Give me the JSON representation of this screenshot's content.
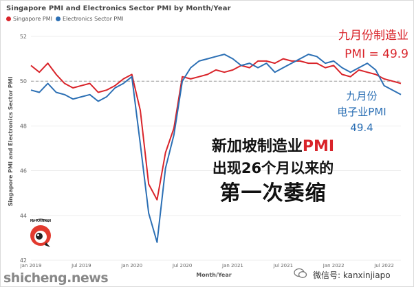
{
  "title": "Singapore PMI and Electronics Sector PMI by Month/Year",
  "legend": [
    {
      "name": "Singapore PMI",
      "color": "#d9242a"
    },
    {
      "name": "Electronics Sector PMI",
      "color": "#2b6fb4"
    }
  ],
  "annotations": {
    "singapore_line1": "九月份制造业",
    "singapore_line2": "PMI = 49.9",
    "electronics_line1": "九月份",
    "electronics_line2": "电子业PMI",
    "electronics_line3": "49.4"
  },
  "headline": {
    "line1_prefix": "新加坡制造业",
    "line1_highlight": "PMI",
    "line2": "出现26个月以来的",
    "line3": "第一次萎缩"
  },
  "badge_text": "MI KANKIN",
  "watermark_left": "shicheng.news",
  "watermark_right": "微信号: kanxinjiapo",
  "colors": {
    "singapore": "#d9242a",
    "electronics": "#2b6fb4",
    "reference": "#999999",
    "grid": "#e6e6e6"
  },
  "chart_data": {
    "type": "line",
    "title": "Singapore PMI and Electronics Sector PMI by Month/Year",
    "xlabel": "Month/Year",
    "ylabel": "Singapore PMI and Electronics Sector PMI",
    "ylim": [
      42,
      52
    ],
    "yticks": [
      42,
      44,
      46,
      48,
      50,
      52
    ],
    "x": [
      "Jan 2019",
      "Feb 2019",
      "Mar 2019",
      "Apr 2019",
      "May 2019",
      "Jun 2019",
      "Jul 2019",
      "Aug 2019",
      "Sep 2019",
      "Oct 2019",
      "Nov 2019",
      "Dec 2019",
      "Jan 2020",
      "Feb 2020",
      "Mar 2020",
      "Apr 2020",
      "May 2020",
      "Jun 2020",
      "Jul 2020",
      "Aug 2020",
      "Sep 2020",
      "Oct 2020",
      "Nov 2020",
      "Dec 2020",
      "Jan 2021",
      "Feb 2021",
      "Mar 2021",
      "Apr 2021",
      "May 2021",
      "Jun 2021",
      "Jul 2021",
      "Aug 2021",
      "Sep 2021",
      "Oct 2021",
      "Nov 2021",
      "Dec 2021",
      "Jan 2022",
      "Feb 2022",
      "Mar 2022",
      "Apr 2022",
      "May 2022",
      "Jun 2022",
      "Jul 2022",
      "Aug 2022",
      "Sep 2022"
    ],
    "xtick_labels": [
      {
        "index": 0,
        "label": "Jan 2019"
      },
      {
        "index": 6,
        "label": "Jul 2019"
      },
      {
        "index": 12,
        "label": "Jan 2020"
      },
      {
        "index": 18,
        "label": "Jul 2020"
      },
      {
        "index": 24,
        "label": "Jan 2021"
      },
      {
        "index": 30,
        "label": "Jul 2021"
      },
      {
        "index": 36,
        "label": "Jan 2022"
      },
      {
        "index": 42,
        "label": "Jul 2022"
      }
    ],
    "reference_line": 50,
    "series": [
      {
        "name": "Singapore PMI",
        "color": "#d9242a",
        "values": [
          50.7,
          50.4,
          50.8,
          50.3,
          49.9,
          49.7,
          49.8,
          49.9,
          49.5,
          49.6,
          49.8,
          50.1,
          50.3,
          48.7,
          45.4,
          44.7,
          46.8,
          47.9,
          50.2,
          50.1,
          50.2,
          50.3,
          50.5,
          50.4,
          50.5,
          50.7,
          50.6,
          50.9,
          50.9,
          50.8,
          51.0,
          50.9,
          50.9,
          50.8,
          50.8,
          50.6,
          50.7,
          50.3,
          50.2,
          50.5,
          50.4,
          50.3,
          50.1,
          50.0,
          49.9
        ]
      },
      {
        "name": "Electronics Sector PMI",
        "color": "#2b6fb4",
        "values": [
          49.6,
          49.5,
          49.9,
          49.5,
          49.4,
          49.2,
          49.3,
          49.4,
          49.1,
          49.3,
          49.7,
          49.9,
          50.2,
          47.2,
          44.1,
          42.8,
          46.1,
          47.6,
          50.0,
          50.6,
          50.9,
          51.0,
          51.1,
          51.2,
          51.0,
          50.7,
          50.8,
          50.6,
          50.8,
          50.4,
          50.6,
          50.8,
          51.0,
          51.2,
          51.1,
          50.8,
          50.9,
          50.6,
          50.4,
          50.6,
          50.8,
          50.5,
          49.8,
          49.6,
          49.4
        ]
      }
    ]
  }
}
